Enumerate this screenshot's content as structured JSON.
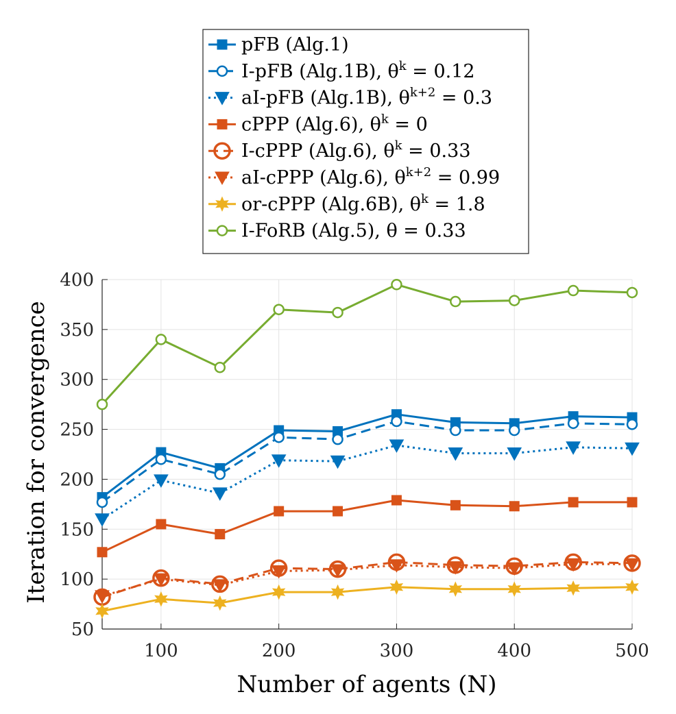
{
  "chart_data": {
    "type": "line",
    "title": "",
    "xlabel": "Number of agents (N)",
    "ylabel": "Iteration for convergence",
    "xlim": [
      50,
      500
    ],
    "ylim": [
      50,
      400
    ],
    "xticks": [
      100,
      200,
      300,
      400,
      500
    ],
    "yticks": [
      50,
      100,
      150,
      200,
      250,
      300,
      350,
      400
    ],
    "grid": true,
    "legend_position": "top (outside axes)",
    "x": [
      50,
      100,
      150,
      200,
      250,
      300,
      350,
      400,
      450,
      500
    ],
    "series": [
      {
        "name": "pFB (Alg.1)",
        "color": "#0072BD",
        "dash": "solid",
        "marker": "square-filled",
        "values": [
          182,
          227,
          211,
          249,
          248,
          265,
          257,
          256,
          263,
          262
        ]
      },
      {
        "name": "I-pFB (Alg.1B), θ^k = 0.12",
        "color": "#0072BD",
        "dash": "dashed",
        "marker": "circle-open",
        "values": [
          177,
          220,
          205,
          242,
          240,
          258,
          249,
          249,
          256,
          255
        ]
      },
      {
        "name": "aI-pFB (Alg.1B), θ^{k+2} = 0.3",
        "color": "#0072BD",
        "dash": "dotted",
        "marker": "triangle-down-filled",
        "values": [
          160,
          199,
          186,
          219,
          218,
          234,
          226,
          226,
          232,
          231
        ]
      },
      {
        "name": "cPPP (Alg.6), θ^k = 0",
        "color": "#D95319",
        "dash": "solid",
        "marker": "square-filled",
        "values": [
          127,
          155,
          145,
          168,
          168,
          179,
          174,
          173,
          177,
          177
        ]
      },
      {
        "name": "I-cPPP (Alg.6), θ^k = 0.33",
        "color": "#D95319",
        "dash": "dashed",
        "marker": "circle-open-large",
        "values": [
          82,
          101,
          95,
          111,
          110,
          117,
          114,
          113,
          117,
          116
        ]
      },
      {
        "name": "aI-cPPP (Alg.6), θ^{k+2} = 0.99",
        "color": "#D95319",
        "dash": "dotted",
        "marker": "triangle-down-filled",
        "values": [
          83,
          100,
          94,
          108,
          109,
          114,
          112,
          111,
          115,
          115
        ]
      },
      {
        "name": "or-cPPP (Alg.6B), θ^k = 1.8",
        "color": "#EDB120",
        "dash": "solid",
        "marker": "hexagram-filled",
        "values": [
          68,
          80,
          76,
          87,
          87,
          92,
          90,
          90,
          91,
          92
        ]
      },
      {
        "name": "I-FoRB (Alg.5), θ = 0.33",
        "color": "#77AC30",
        "dash": "solid",
        "marker": "circle-open",
        "values": [
          275,
          340,
          312,
          370,
          367,
          395,
          378,
          379,
          389,
          387
        ]
      }
    ]
  },
  "legend": {
    "entries": [
      {
        "base": "pFB (Alg.1)",
        "sup": "",
        "tail": ""
      },
      {
        "base": "I-pFB (Alg.1B), θ",
        "sup": "k",
        "tail": " = 0.12"
      },
      {
        "base": "aI-pFB (Alg.1B), θ",
        "sup": "k+2",
        "tail": " = 0.3"
      },
      {
        "base": "cPPP (Alg.6), θ",
        "sup": "k",
        "tail": " = 0"
      },
      {
        "base": "I-cPPP (Alg.6), θ",
        "sup": "k",
        "tail": " = 0.33"
      },
      {
        "base": "aI-cPPP (Alg.6), θ",
        "sup": "k+2",
        "tail": " = 0.99"
      },
      {
        "base": "or-cPPP (Alg.6B), θ",
        "sup": "k",
        "tail": " = 1.8"
      },
      {
        "base": "I-FoRB (Alg.5), θ = 0.33",
        "sup": "",
        "tail": ""
      }
    ]
  }
}
